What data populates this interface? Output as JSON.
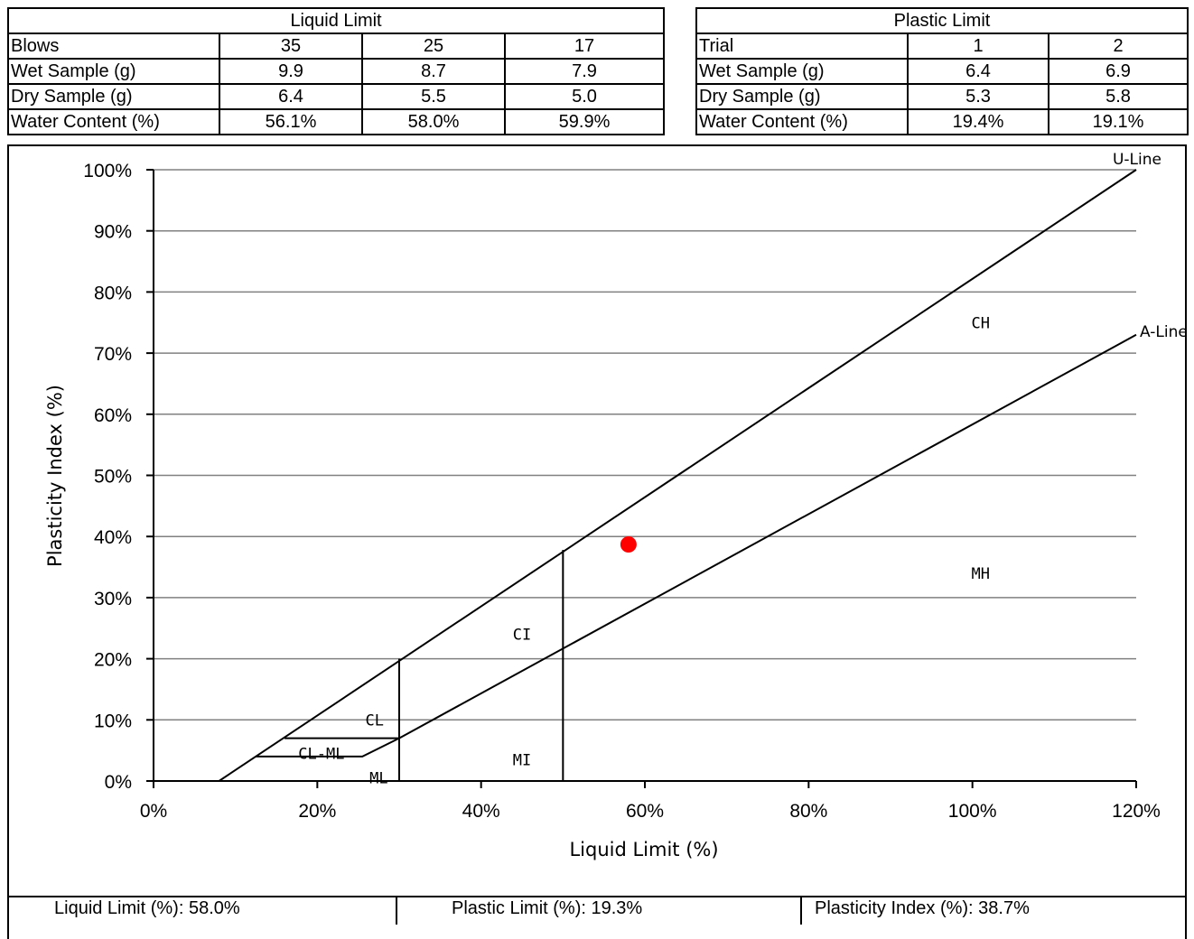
{
  "liquid_limit_table": {
    "title": "Liquid Limit",
    "rows": [
      {
        "label": "Blows",
        "values": [
          "35",
          "25",
          "17"
        ]
      },
      {
        "label": "Wet Sample (g)",
        "values": [
          "9.9",
          "8.7",
          "7.9"
        ]
      },
      {
        "label": "Dry Sample (g)",
        "values": [
          "6.4",
          "5.5",
          "5.0"
        ]
      },
      {
        "label": "Water Content (%)",
        "values": [
          "56.1%",
          "58.0%",
          "59.9%"
        ]
      }
    ]
  },
  "plastic_limit_table": {
    "title": "Plastic Limit",
    "rows": [
      {
        "label": "Trial",
        "values": [
          "1",
          "2"
        ]
      },
      {
        "label": "Wet Sample (g)",
        "values": [
          "6.4",
          "6.9"
        ]
      },
      {
        "label": "Dry Sample (g)",
        "values": [
          "5.3",
          "5.8"
        ]
      },
      {
        "label": "Water Content (%)",
        "values": [
          "19.4%",
          "19.1%"
        ]
      }
    ]
  },
  "chart_data": {
    "type": "scatter",
    "xlabel": "Liquid Limit (%)",
    "ylabel": "Plasticity Index (%)",
    "xlim": [
      0,
      120
    ],
    "ylim": [
      0,
      100
    ],
    "x_ticks": [
      "0%",
      "20%",
      "40%",
      "60%",
      "80%",
      "100%",
      "120%"
    ],
    "y_ticks": [
      "0%",
      "10%",
      "20%",
      "30%",
      "40%",
      "50%",
      "60%",
      "70%",
      "80%",
      "90%",
      "100%"
    ],
    "grid": "horizontal",
    "lines": [
      {
        "name": "U-Line",
        "points": [
          [
            8,
            0
          ],
          [
            120,
            100
          ]
        ]
      },
      {
        "name": "A-Line",
        "points": [
          [
            30,
            7
          ],
          [
            120,
            73
          ]
        ]
      },
      {
        "name": "",
        "points": [
          [
            30,
            0
          ],
          [
            30,
            20
          ]
        ]
      },
      {
        "name": "",
        "points": [
          [
            50,
            0
          ],
          [
            50,
            37.8
          ]
        ]
      },
      {
        "name": "",
        "points": [
          [
            16,
            7
          ],
          [
            30,
            7
          ]
        ]
      },
      {
        "name": "",
        "points": [
          [
            12.5,
            4
          ],
          [
            25.5,
            4
          ],
          [
            30,
            7
          ]
        ]
      }
    ],
    "regions": [
      {
        "label": "CH",
        "x": 101,
        "y": 75
      },
      {
        "label": "MH",
        "x": 101,
        "y": 34
      },
      {
        "label": "CI",
        "x": 45,
        "y": 24
      },
      {
        "label": "MI",
        "x": 45,
        "y": 3.5
      },
      {
        "label": "CL",
        "x": 27,
        "y": 10
      },
      {
        "label": "CL-ML",
        "x": 20.5,
        "y": 4.5
      },
      {
        "label": "ML",
        "x": 27.5,
        "y": 0.5
      }
    ],
    "points": [
      {
        "x": 58.0,
        "y": 38.7,
        "color": "#ff0000"
      }
    ]
  },
  "summary": {
    "ll_label": "Liquid Limit (%):",
    "ll_value": "58.0%",
    "pl_label": "Plastic Limit (%):",
    "pl_value": "19.3%",
    "pi_label": "Plasticity Index (%):",
    "pi_value": "38.7%"
  }
}
